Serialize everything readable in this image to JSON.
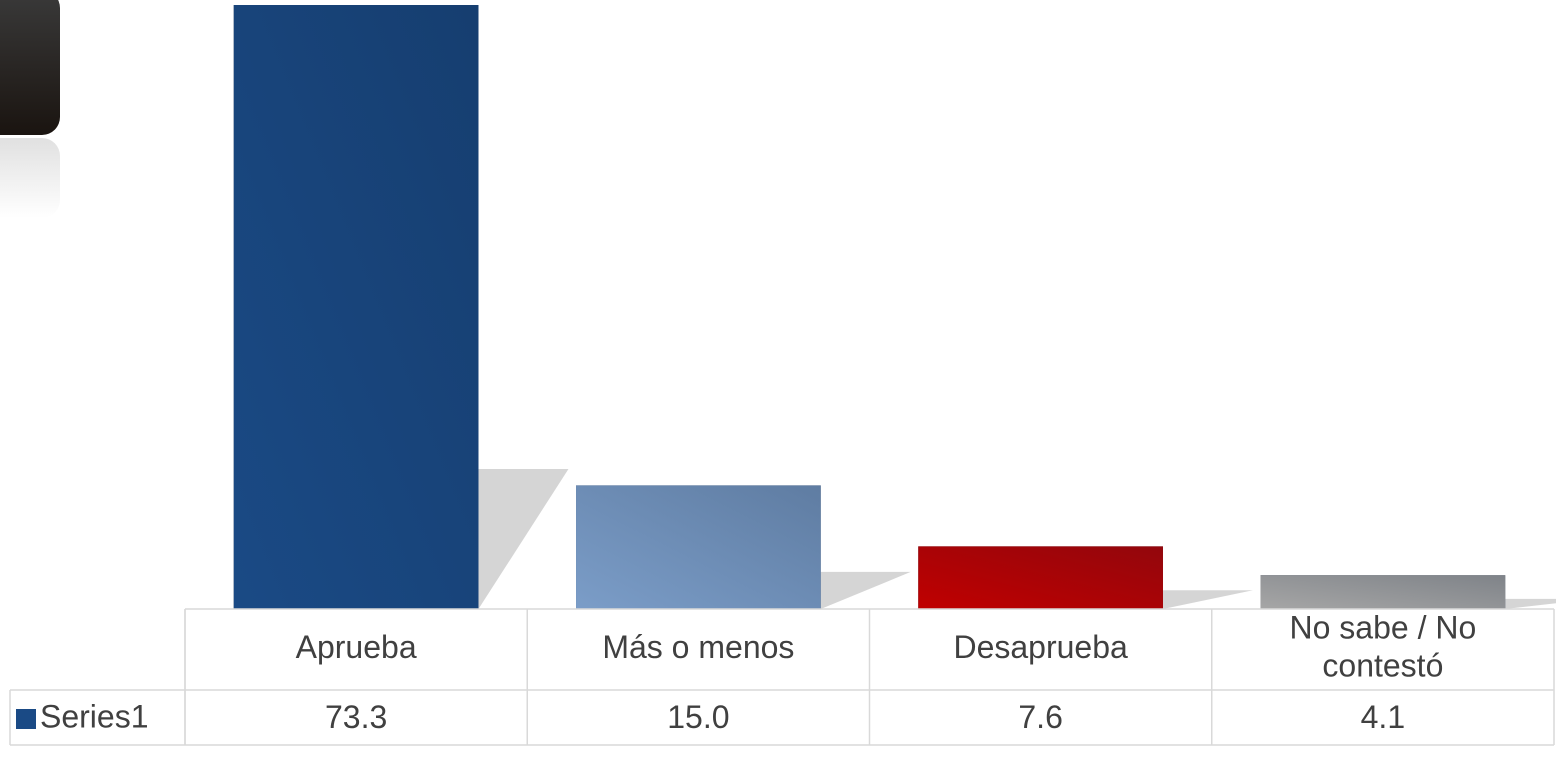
{
  "chart_data": {
    "type": "bar",
    "categories": [
      "Aprueba",
      "Más o menos",
      "Desaprueba",
      "No sabe / No contestó"
    ],
    "series": [
      {
        "name": "Series1",
        "color": "#1a4a85",
        "colors": [
          "#1a4a85",
          "#7b9dc8",
          "#c00000",
          "#a6a6a6"
        ],
        "values": [
          73.3,
          15.0,
          7.6,
          4.1
        ],
        "value_labels": [
          "73.3",
          "15.0",
          "7.6",
          "4.1"
        ]
      }
    ]
  }
}
